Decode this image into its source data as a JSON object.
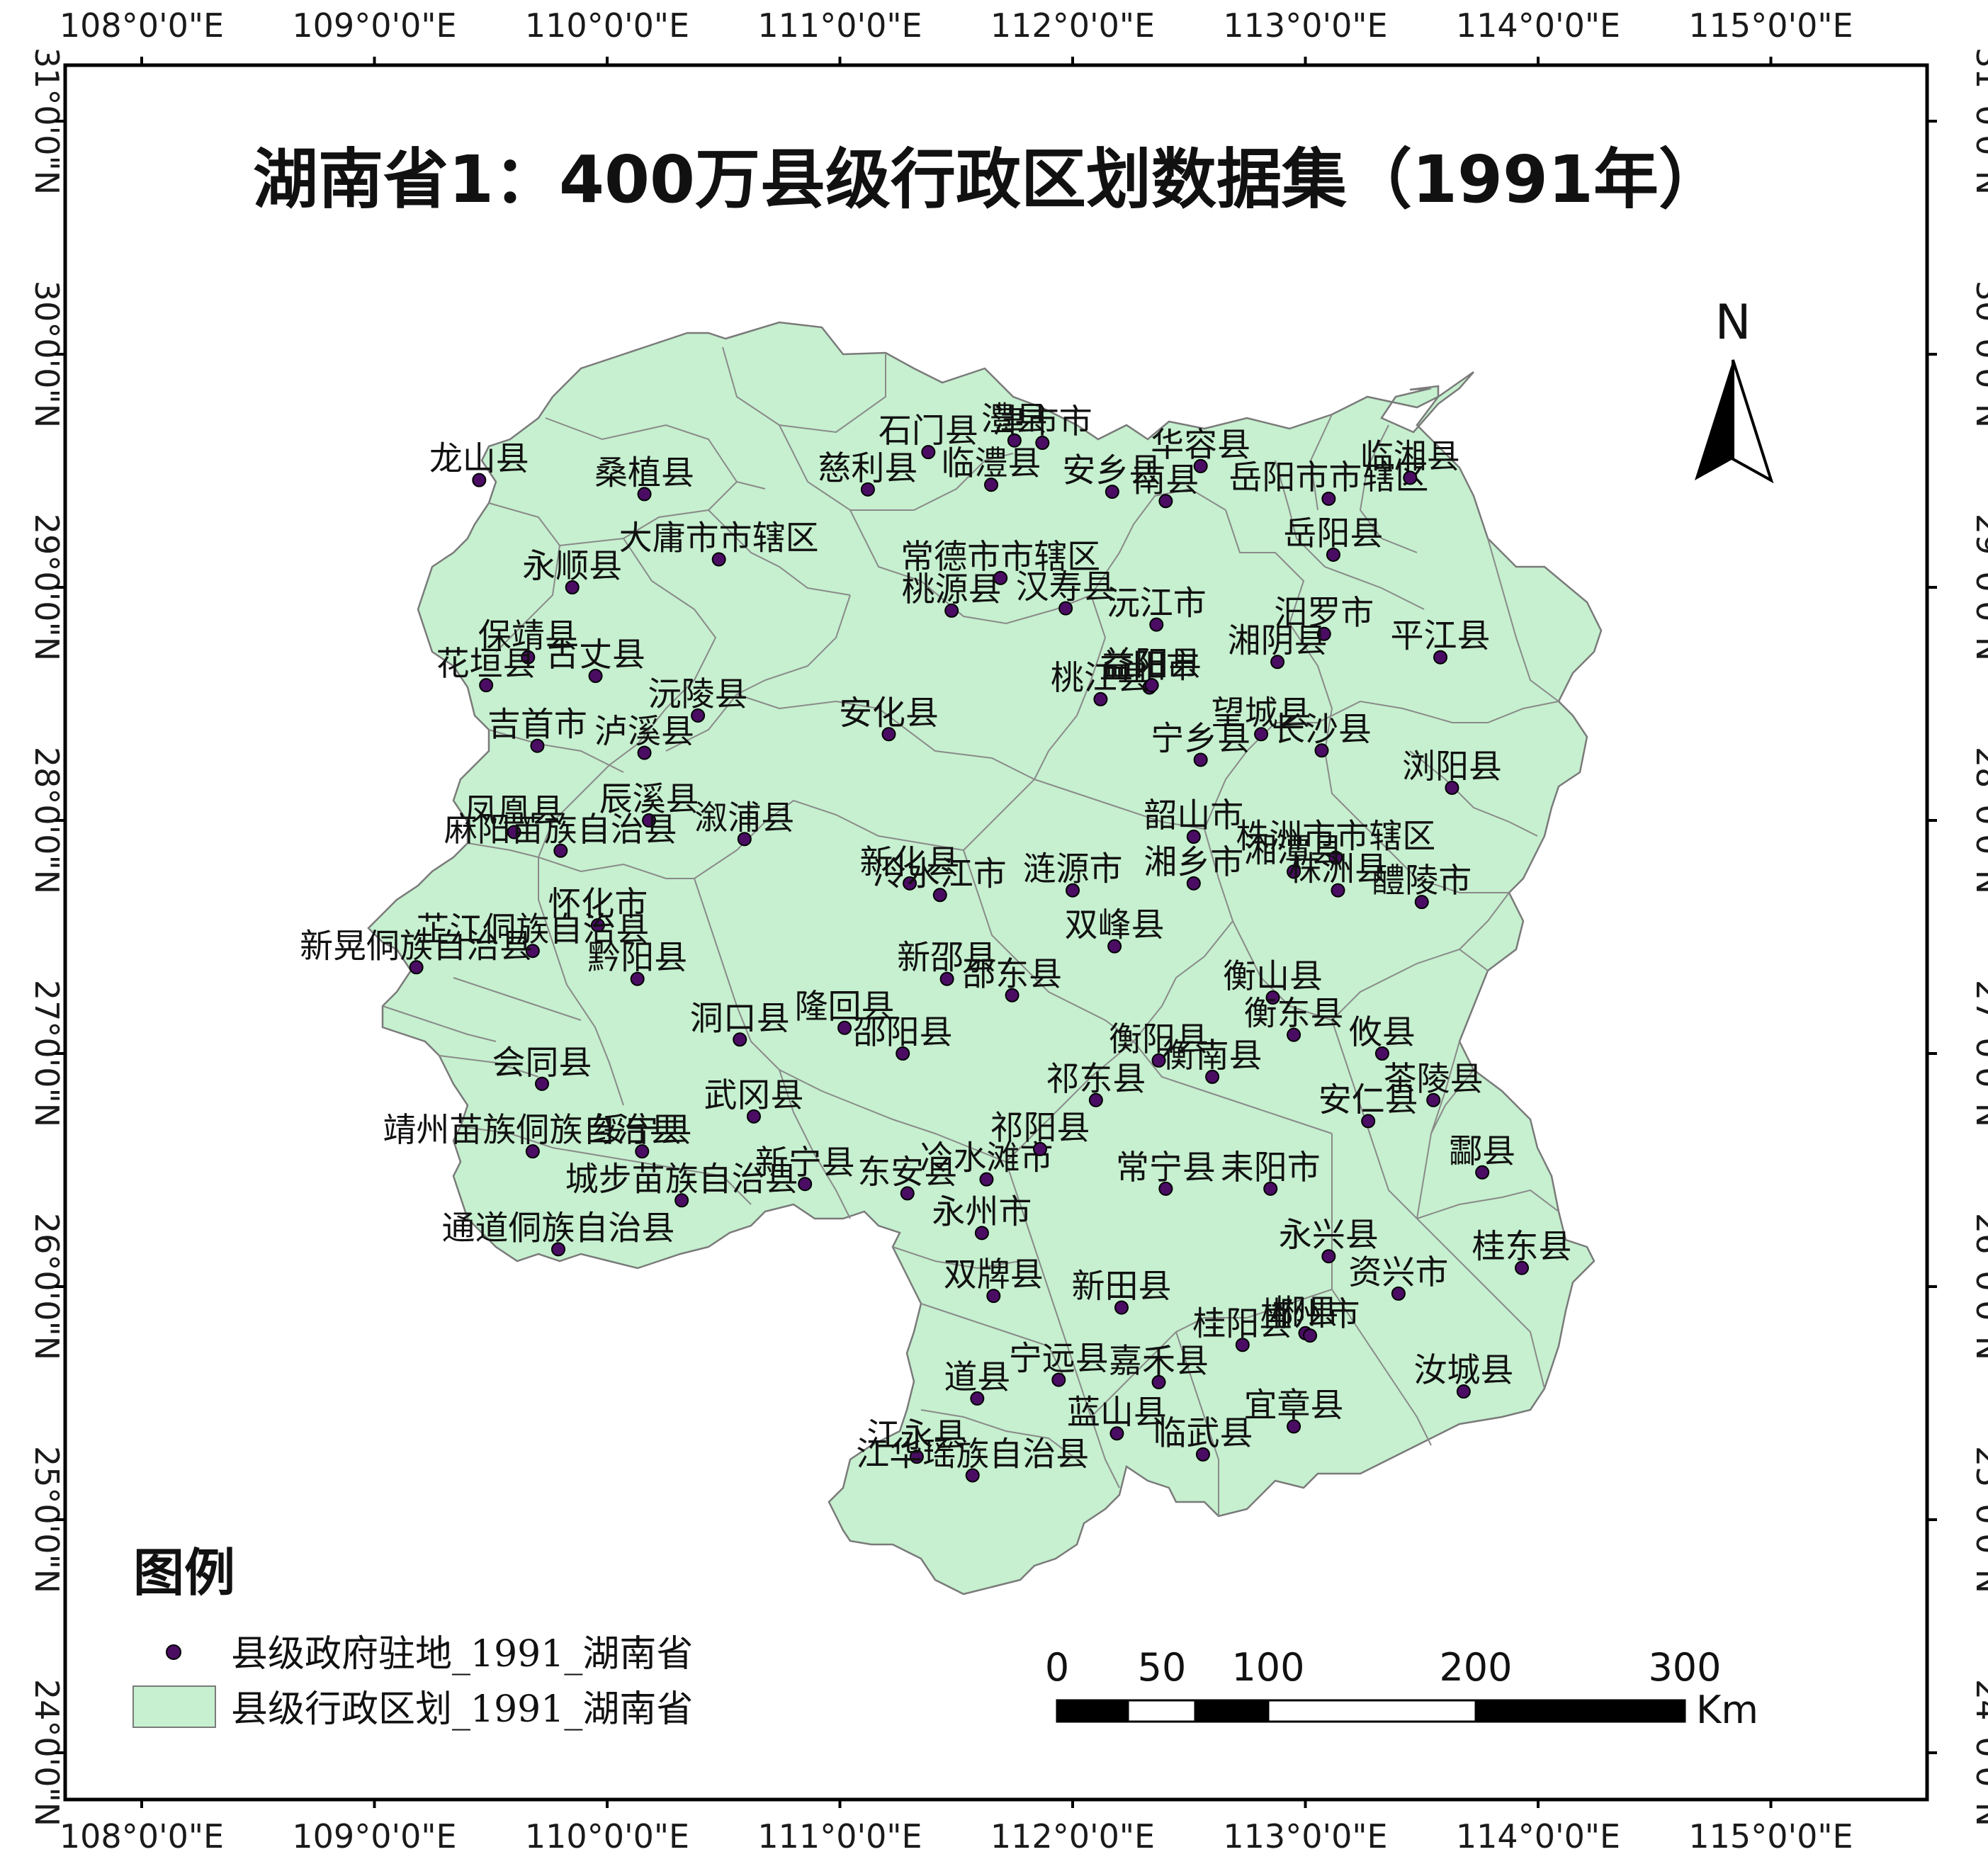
{
  "title": "湖南省1：400万县级行政区划数据集（1991年）",
  "colors": {
    "fill": "#c6f0cf",
    "stroke": "#7a7a7a",
    "point": "#4a0d63",
    "frame": "#000000"
  },
  "axes": {
    "lon_labels": [
      "108°0'0\"E",
      "109°0'0\"E",
      "110°0'0\"E",
      "111°0'0\"E",
      "112°0'0\"E",
      "113°0'0\"E",
      "114°0'0\"E",
      "115°0'0\"E"
    ],
    "lat_labels": [
      "24°0'0\"N",
      "25°0'0\"N",
      "26°0'0\"N",
      "27°0'0\"N",
      "28°0'0\"N",
      "29°0'0\"N",
      "30°0'0\"N",
      "31°0'0\"N"
    ]
  },
  "north_arrow": {
    "label": "N"
  },
  "legend": {
    "title": "图例",
    "items": [
      {
        "label": "县级政府驻地_1991_湖南省",
        "symbol": "point-icon"
      },
      {
        "label": "县级行政区划_1991_湖南省",
        "symbol": "polygon-icon"
      }
    ]
  },
  "scale_bar": {
    "labels": [
      "0",
      "50",
      "100",
      "200",
      "300"
    ],
    "unit": "Km"
  },
  "counties": [
    {
      "name": "石门县",
      "lon": 111.38,
      "lat": 29.58
    },
    {
      "name": "澧县",
      "lon": 111.75,
      "lat": 29.63
    },
    {
      "name": "津市市",
      "lon": 111.87,
      "lat": 29.62
    },
    {
      "name": "岳阳市市辖区",
      "lon": 113.1,
      "lat": 29.38
    },
    {
      "name": "临湘县",
      "lon": 113.45,
      "lat": 29.47
    },
    {
      "name": "桑植县",
      "lon": 110.16,
      "lat": 29.4
    },
    {
      "name": "慈利县",
      "lon": 111.12,
      "lat": 29.42
    },
    {
      "name": "临澧县",
      "lon": 111.65,
      "lat": 29.44
    },
    {
      "name": "安乡县",
      "lon": 112.17,
      "lat": 29.41
    },
    {
      "name": "华容县",
      "lon": 112.55,
      "lat": 29.52
    },
    {
      "name": "龙山县",
      "lon": 109.45,
      "lat": 29.46
    },
    {
      "name": "大庸市市辖区",
      "lon": 110.48,
      "lat": 29.12
    },
    {
      "name": "南县",
      "lon": 112.4,
      "lat": 29.37
    },
    {
      "name": "岳阳县",
      "lon": 113.12,
      "lat": 29.14
    },
    {
      "name": "常德市市辖区",
      "lon": 111.69,
      "lat": 29.04
    },
    {
      "name": "永顺县",
      "lon": 109.85,
      "lat": 29.0
    },
    {
      "name": "桃源县",
      "lon": 111.48,
      "lat": 28.9
    },
    {
      "name": "汉寿县",
      "lon": 111.97,
      "lat": 28.91
    },
    {
      "name": "沅江市",
      "lon": 112.36,
      "lat": 28.84
    },
    {
      "name": "汨罗市",
      "lon": 113.08,
      "lat": 28.8
    },
    {
      "name": "保靖县",
      "lon": 109.66,
      "lat": 28.7
    },
    {
      "name": "湘阴县",
      "lon": 112.88,
      "lat": 28.68
    },
    {
      "name": "平江县",
      "lon": 113.58,
      "lat": 28.7
    },
    {
      "name": "益阳市",
      "lon": 112.33,
      "lat": 28.57
    },
    {
      "name": "古丈县",
      "lon": 109.95,
      "lat": 28.62
    },
    {
      "name": "沅陵县",
      "lon": 110.39,
      "lat": 28.45
    },
    {
      "name": "花垣县",
      "lon": 109.48,
      "lat": 28.58
    },
    {
      "name": "桃江县",
      "lon": 112.12,
      "lat": 28.52
    },
    {
      "name": "益阳县",
      "lon": 112.34,
      "lat": 28.58
    },
    {
      "name": "吉首市",
      "lon": 109.7,
      "lat": 28.32
    },
    {
      "name": "安化县",
      "lon": 111.21,
      "lat": 28.37
    },
    {
      "name": "长沙县",
      "lon": 113.07,
      "lat": 28.3
    },
    {
      "name": "泸溪县",
      "lon": 110.16,
      "lat": 28.29
    },
    {
      "name": "宁乡县",
      "lon": 112.55,
      "lat": 28.26
    },
    {
      "name": "望城县",
      "lon": 112.81,
      "lat": 28.37
    },
    {
      "name": "浏阳县",
      "lon": 113.63,
      "lat": 28.14
    },
    {
      "name": "凤凰县",
      "lon": 109.6,
      "lat": 27.95
    },
    {
      "name": "辰溪县",
      "lon": 110.18,
      "lat": 28.0
    },
    {
      "name": "溆浦县",
      "lon": 110.59,
      "lat": 27.92
    },
    {
      "name": "韶山市",
      "lon": 112.52,
      "lat": 27.93
    },
    {
      "name": "株洲市市辖区",
      "lon": 113.13,
      "lat": 27.84
    },
    {
      "name": "麻阳苗族自治县",
      "lon": 109.8,
      "lat": 27.87
    },
    {
      "name": "新化县",
      "lon": 111.3,
      "lat": 27.73
    },
    {
      "name": "湘乡市",
      "lon": 112.52,
      "lat": 27.73
    },
    {
      "name": "涟源市",
      "lon": 112.0,
      "lat": 27.7
    },
    {
      "name": "冷水江市",
      "lon": 111.43,
      "lat": 27.68
    },
    {
      "name": "湘潭县",
      "lon": 112.95,
      "lat": 27.78
    },
    {
      "name": "醴陵市",
      "lon": 113.5,
      "lat": 27.65
    },
    {
      "name": "怀化市",
      "lon": 109.96,
      "lat": 27.55
    },
    {
      "name": "芷江侗族自治县",
      "lon": 109.68,
      "lat": 27.44
    },
    {
      "name": "双峰县",
      "lon": 112.18,
      "lat": 27.46
    },
    {
      "name": "株洲县",
      "lon": 113.14,
      "lat": 27.7
    },
    {
      "name": "新邵县",
      "lon": 111.46,
      "lat": 27.32
    },
    {
      "name": "隆回县",
      "lon": 111.02,
      "lat": 27.11
    },
    {
      "name": "衡山县",
      "lon": 112.86,
      "lat": 27.24
    },
    {
      "name": "黔阳县",
      "lon": 110.13,
      "lat": 27.32
    },
    {
      "name": "新晃侗族自治县",
      "lon": 109.18,
      "lat": 27.37
    },
    {
      "name": "邵东县",
      "lon": 111.74,
      "lat": 27.25
    },
    {
      "name": "衡阳县",
      "lon": 112.37,
      "lat": 26.97
    },
    {
      "name": "衡东县",
      "lon": 112.95,
      "lat": 27.08
    },
    {
      "name": "攸县",
      "lon": 113.33,
      "lat": 27.0
    },
    {
      "name": "洞口县",
      "lon": 110.57,
      "lat": 27.06
    },
    {
      "name": "邵阳县",
      "lon": 111.27,
      "lat": 27.0
    },
    {
      "name": "会同县",
      "lon": 109.72,
      "lat": 26.87
    },
    {
      "name": "祁东县",
      "lon": 112.1,
      "lat": 26.8
    },
    {
      "name": "衡南县",
      "lon": 112.6,
      "lat": 26.9
    },
    {
      "name": "茶陵县",
      "lon": 113.55,
      "lat": 26.8
    },
    {
      "name": "武冈县",
      "lon": 110.63,
      "lat": 26.73
    },
    {
      "name": "绥宁县",
      "lon": 110.15,
      "lat": 26.58
    },
    {
      "name": "冷水滩市",
      "lon": 111.63,
      "lat": 26.46
    },
    {
      "name": "安仁县",
      "lon": 113.27,
      "lat": 26.71
    },
    {
      "name": "靖州苗族侗族自治县",
      "lon": 109.68,
      "lat": 26.58
    },
    {
      "name": "新宁县",
      "lon": 110.85,
      "lat": 26.44
    },
    {
      "name": "东安县",
      "lon": 111.29,
      "lat": 26.4
    },
    {
      "name": "祁阳县",
      "lon": 111.86,
      "lat": 26.59
    },
    {
      "name": "常宁县",
      "lon": 112.4,
      "lat": 26.42
    },
    {
      "name": "耒阳市",
      "lon": 112.85,
      "lat": 26.42
    },
    {
      "name": "酃县",
      "lon": 113.76,
      "lat": 26.49
    },
    {
      "name": "通道侗族自治县",
      "lon": 109.79,
      "lat": 26.16
    },
    {
      "name": "城步苗族自治县",
      "lon": 110.32,
      "lat": 26.37
    },
    {
      "name": "永州市",
      "lon": 111.61,
      "lat": 26.23
    },
    {
      "name": "永兴县",
      "lon": 113.1,
      "lat": 26.13
    },
    {
      "name": "新田县",
      "lon": 112.21,
      "lat": 25.91
    },
    {
      "name": "资兴市",
      "lon": 113.4,
      "lat": 25.97
    },
    {
      "name": "桂东县",
      "lon": 113.93,
      "lat": 26.08
    },
    {
      "name": "双牌县",
      "lon": 111.66,
      "lat": 25.96
    },
    {
      "name": "桂阳县",
      "lon": 112.73,
      "lat": 25.75
    },
    {
      "name": "郴县",
      "lon": 113.0,
      "lat": 25.8
    },
    {
      "name": "宁远县",
      "lon": 111.94,
      "lat": 25.6
    },
    {
      "name": "嘉禾县",
      "lon": 112.37,
      "lat": 25.59
    },
    {
      "name": "郴州市",
      "lon": 113.02,
      "lat": 25.79
    },
    {
      "name": "汝城县",
      "lon": 113.68,
      "lat": 25.55
    },
    {
      "name": "道县",
      "lon": 111.59,
      "lat": 25.52
    },
    {
      "name": "蓝山县",
      "lon": 112.19,
      "lat": 25.37
    },
    {
      "name": "临武县",
      "lon": 112.56,
      "lat": 25.28
    },
    {
      "name": "宜章县",
      "lon": 112.95,
      "lat": 25.4
    },
    {
      "name": "江永县",
      "lon": 111.33,
      "lat": 25.27
    },
    {
      "name": "江华瑶族自治县",
      "lon": 111.57,
      "lat": 25.19
    }
  ]
}
